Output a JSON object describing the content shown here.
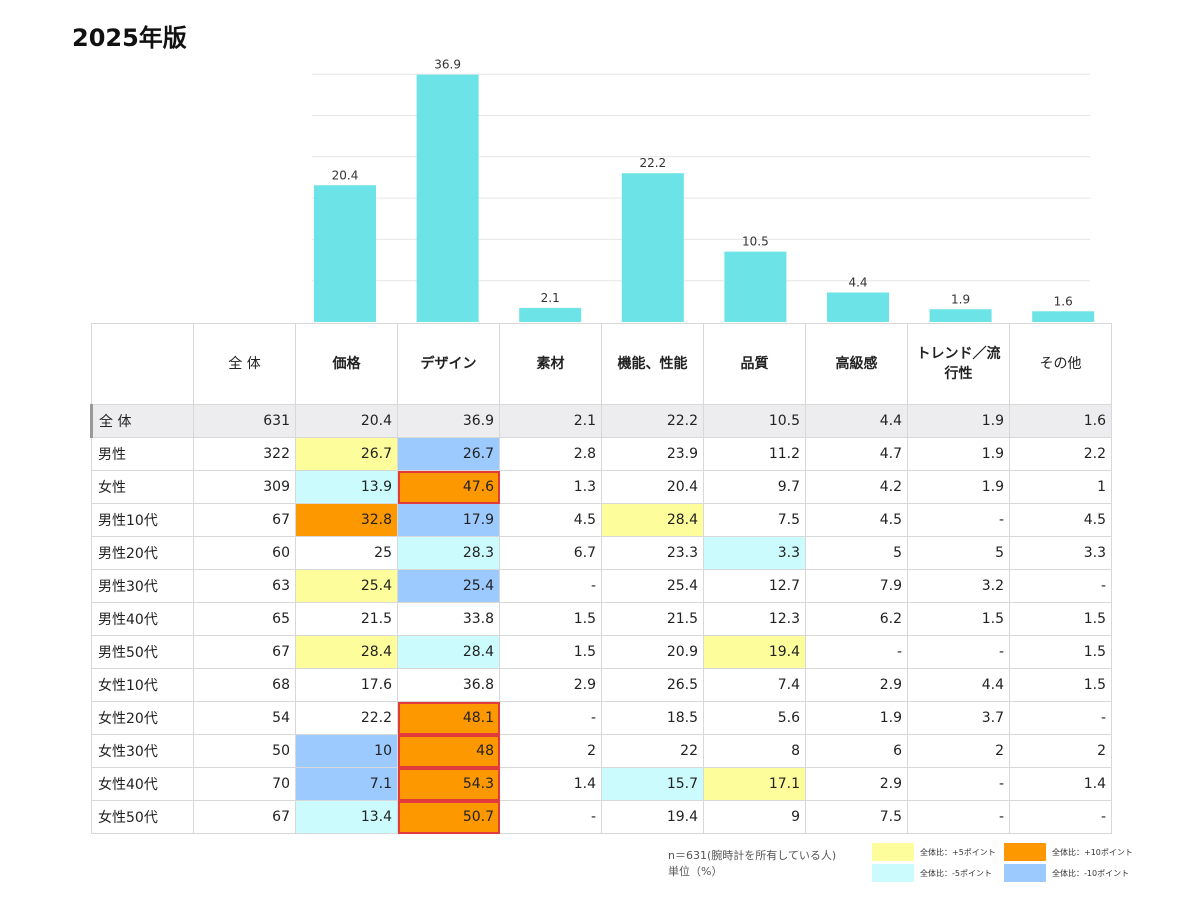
{
  "title": "2025年版",
  "chart_data": {
    "type": "bar",
    "categories": [
      "価格",
      "デザイン",
      "素材",
      "機能、性能",
      "品質",
      "高級感",
      "トレンド／流行性",
      "その他"
    ],
    "values": [
      20.4,
      36.9,
      2.1,
      22.2,
      10.5,
      4.4,
      1.9,
      1.6
    ],
    "ylim": [
      0,
      37
    ],
    "grid": true,
    "color": "#6ce3e6"
  },
  "table": {
    "headers": [
      {
        "label": "",
        "bold": false
      },
      {
        "label": "全 体",
        "bold": false
      },
      {
        "label": "価格",
        "bold": true
      },
      {
        "label": "デザイン",
        "bold": true
      },
      {
        "label": "素材",
        "bold": true
      },
      {
        "label": "機能、性能",
        "bold": true
      },
      {
        "label": "品質",
        "bold": true
      },
      {
        "label": "高級感",
        "bold": true
      },
      {
        "label": "トレンド／流行性",
        "bold": true
      },
      {
        "label": "その他",
        "bold": false
      }
    ],
    "rows": [
      {
        "label": "全 体",
        "n": "631",
        "values": [
          "20.4",
          "36.9",
          "2.1",
          "22.2",
          "10.5",
          "4.4",
          "1.9",
          "1.6"
        ],
        "colors": [
          "",
          "",
          "",
          "",
          "",
          "",
          "",
          ""
        ],
        "total": true
      },
      {
        "label": "男性",
        "n": "322",
        "values": [
          "26.7",
          "26.7",
          "2.8",
          "23.9",
          "11.2",
          "4.7",
          "1.9",
          "2.2"
        ],
        "colors": [
          "y",
          "b",
          "",
          "",
          "",
          "",
          "",
          ""
        ]
      },
      {
        "label": "女性",
        "n": "309",
        "values": [
          "13.9",
          "47.6",
          "1.3",
          "20.4",
          "9.7",
          "4.2",
          "1.9",
          "1"
        ],
        "colors": [
          "c",
          "o!",
          "",
          "",
          "",
          "",
          "",
          ""
        ]
      },
      {
        "label": "男性10代",
        "n": "67",
        "values": [
          "32.8",
          "17.9",
          "4.5",
          "28.4",
          "7.5",
          "4.5",
          "-",
          "4.5"
        ],
        "colors": [
          "o",
          "b",
          "",
          "y",
          "",
          "",
          "",
          ""
        ]
      },
      {
        "label": "男性20代",
        "n": "60",
        "values": [
          "25",
          "28.3",
          "6.7",
          "23.3",
          "3.3",
          "5",
          "5",
          "3.3"
        ],
        "colors": [
          "",
          "c",
          "",
          "",
          "c",
          "",
          "",
          ""
        ]
      },
      {
        "label": "男性30代",
        "n": "63",
        "values": [
          "25.4",
          "25.4",
          "-",
          "25.4",
          "12.7",
          "7.9",
          "3.2",
          "-"
        ],
        "colors": [
          "y",
          "b",
          "",
          "",
          "",
          "",
          "",
          ""
        ]
      },
      {
        "label": "男性40代",
        "n": "65",
        "values": [
          "21.5",
          "33.8",
          "1.5",
          "21.5",
          "12.3",
          "6.2",
          "1.5",
          "1.5"
        ],
        "colors": [
          "",
          "",
          "",
          "",
          "",
          "",
          "",
          ""
        ]
      },
      {
        "label": "男性50代",
        "n": "67",
        "values": [
          "28.4",
          "28.4",
          "1.5",
          "20.9",
          "19.4",
          "-",
          "-",
          "1.5"
        ],
        "colors": [
          "y",
          "c",
          "",
          "",
          "y",
          "",
          "",
          ""
        ]
      },
      {
        "label": "女性10代",
        "n": "68",
        "values": [
          "17.6",
          "36.8",
          "2.9",
          "26.5",
          "7.4",
          "2.9",
          "4.4",
          "1.5"
        ],
        "colors": [
          "",
          "",
          "",
          "",
          "",
          "",
          "",
          ""
        ]
      },
      {
        "label": "女性20代",
        "n": "54",
        "values": [
          "22.2",
          "48.1",
          "-",
          "18.5",
          "5.6",
          "1.9",
          "3.7",
          "-"
        ],
        "colors": [
          "",
          "o!",
          "",
          "",
          "",
          "",
          "",
          ""
        ]
      },
      {
        "label": "女性30代",
        "n": "50",
        "values": [
          "10",
          "48",
          "2",
          "22",
          "8",
          "6",
          "2",
          "2"
        ],
        "colors": [
          "b",
          "o!",
          "",
          "",
          "",
          "",
          "",
          ""
        ]
      },
      {
        "label": "女性40代",
        "n": "70",
        "values": [
          "7.1",
          "54.3",
          "1.4",
          "15.7",
          "17.1",
          "2.9",
          "-",
          "1.4"
        ],
        "colors": [
          "b",
          "o!",
          "",
          "c",
          "y",
          "",
          "",
          ""
        ]
      },
      {
        "label": "女性50代",
        "n": "67",
        "values": [
          "13.4",
          "50.7",
          "-",
          "19.4",
          "9",
          "7.5",
          "-",
          "-"
        ],
        "colors": [
          "c",
          "o!",
          "",
          "",
          "",
          "",
          "",
          ""
        ]
      }
    ]
  },
  "note": {
    "line1": "n＝631(腕時計を所有している人)",
    "line2": "単位（%）"
  },
  "legend": [
    {
      "key": "y",
      "label": "全体比：+5ポイント",
      "color": "#fdfd9c"
    },
    {
      "key": "o",
      "label": "全体比：+10ポイント",
      "color": "#fd9800"
    },
    {
      "key": "c",
      "label": "全体比：-5ポイント",
      "color": "#ccfbfd"
    },
    {
      "key": "b",
      "label": "全体比：-10ポイント",
      "color": "#9cc9fe"
    }
  ]
}
